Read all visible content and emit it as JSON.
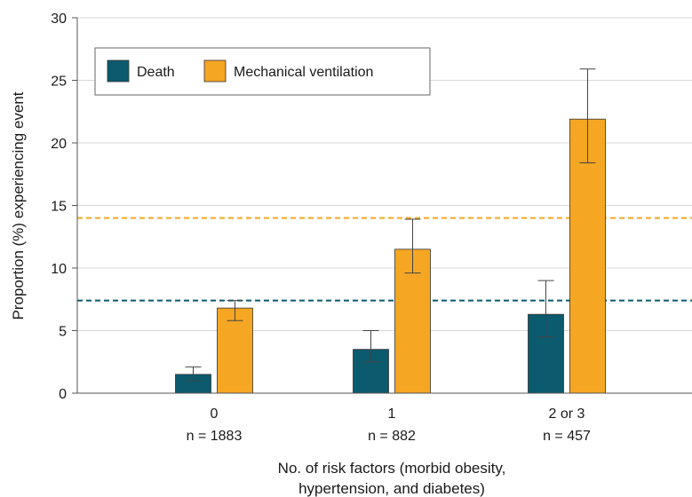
{
  "chart_data": {
    "type": "bar",
    "title": "",
    "categories": [
      "0",
      "1",
      "2 or 3"
    ],
    "category_notes": [
      "n = 1883",
      "n = 882",
      "n = 457"
    ],
    "xlabel_lines": [
      "No. of risk factors (morbid obesity,",
      "hypertension, and diabetes)"
    ],
    "ylabel": "Proportion (%) experiencing event",
    "ylim": [
      0,
      30
    ],
    "yticks": [
      0,
      5,
      10,
      15,
      20,
      25,
      30
    ],
    "grid": true,
    "legend_position": "top-left",
    "series": [
      {
        "name": "Death",
        "color": "#0b5a6e",
        "values": [
          1.5,
          3.5,
          6.3
        ],
        "ci_low": [
          1.0,
          2.5,
          4.5
        ],
        "ci_high": [
          2.1,
          5.0,
          9.0
        ],
        "reference_line": 7.4
      },
      {
        "name": "Mechanical ventilation",
        "color": "#f5a623",
        "values": [
          6.8,
          11.5,
          21.9
        ],
        "ci_low": [
          5.8,
          9.6,
          18.4
        ],
        "ci_high": [
          7.4,
          13.9,
          25.9
        ],
        "reference_line": 14.0
      }
    ]
  }
}
